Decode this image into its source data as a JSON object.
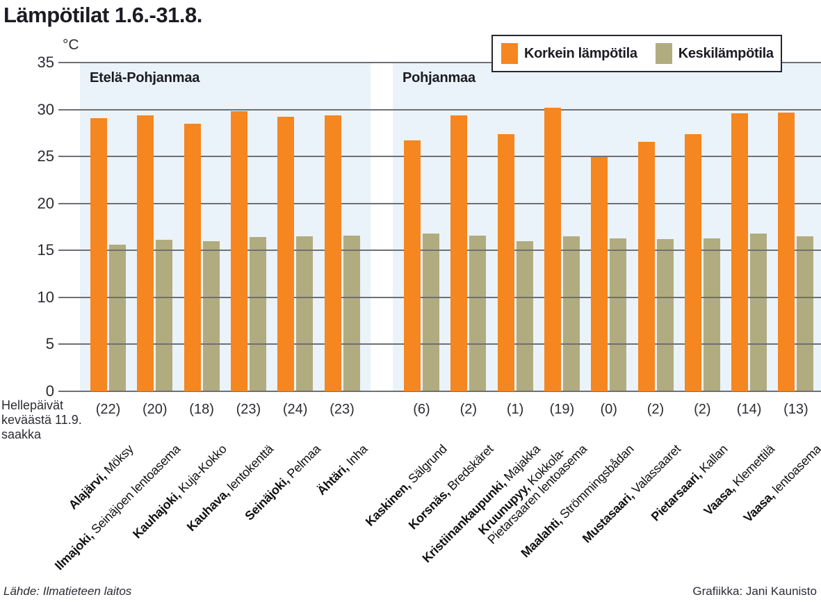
{
  "title": "Lämpötilat 1.6.-31.8.",
  "legend": {
    "max_label": "Korkein lämpötila",
    "mean_label": "Keskilämpötila"
  },
  "hot_days_note": {
    "line1": "Hellepäivät",
    "line2": "keväästä 11.9.",
    "line3": "saakka"
  },
  "footer": {
    "source": "Lähde: Ilmatieteen laitos",
    "credit": "Grafiikka: Jani Kaunisto"
  },
  "colors": {
    "max_bar": "#F6861F",
    "mean_bar": "#B1AB80",
    "panel": "#EAF3FA",
    "gridline": "#6F6F75",
    "text": "#1C1C24"
  },
  "chart_data": {
    "type": "bar",
    "title": "Lämpötilat 1.6.-31.8.",
    "unit": "°C",
    "ylabel": "°C",
    "xlabel": "",
    "ylim": [
      0,
      35
    ],
    "yticks": [
      35,
      30,
      25,
      20,
      15,
      10,
      5,
      0
    ],
    "grid": true,
    "legend_position": "top-right",
    "series_names": [
      "Korkein lämpötila",
      "Keskilämpötila"
    ],
    "hot_days_caption": "Hellepäivät keväästä 11.9. saakka",
    "groups": [
      {
        "name": "Etelä-Pohjanmaa",
        "stations": [
          {
            "city": "Alajärvi",
            "detail": "Möksy",
            "hot_days": 22,
            "max": 29.1,
            "mean": 15.6
          },
          {
            "city": "Ilmajoki",
            "detail": "Seinäjoen lentoasema",
            "hot_days": 20,
            "max": 29.4,
            "mean": 16.1
          },
          {
            "city": "Kauhajoki",
            "detail": "Kuja-Kokko",
            "hot_days": 18,
            "max": 28.5,
            "mean": 16.0
          },
          {
            "city": "Kauhava",
            "detail": "lentokenttä",
            "hot_days": 23,
            "max": 29.8,
            "mean": 16.4
          },
          {
            "city": "Seinäjoki",
            "detail": "Pelmaa",
            "hot_days": 24,
            "max": 29.2,
            "mean": 16.5
          },
          {
            "city": "Ähtäri",
            "detail": "Inha",
            "hot_days": 23,
            "max": 29.4,
            "mean": 16.6
          }
        ]
      },
      {
        "name": "Pohjanmaa",
        "stations": [
          {
            "city": "Kaskinen",
            "detail": "Sälgrund",
            "hot_days": 6,
            "max": 26.7,
            "mean": 16.8
          },
          {
            "city": "Korsnäs",
            "detail": "Bredskäret",
            "hot_days": 2,
            "max": 29.4,
            "mean": 16.6
          },
          {
            "city": "Kristiinankaupunki",
            "detail": "Majakka",
            "hot_days": 1,
            "max": 27.4,
            "mean": 16.0
          },
          {
            "city": "Kruunupyy",
            "detail": "Kokkola-",
            "detail_line2": "Pietarsaaren lentoasema",
            "hot_days": 19,
            "max": 30.2,
            "mean": 16.5
          },
          {
            "city": "Maalahti",
            "detail": "Strömmingsbådan",
            "hot_days": 0,
            "max": 24.9,
            "mean": 16.3
          },
          {
            "city": "Mustasaari",
            "detail": "Valassaaret",
            "hot_days": 2,
            "max": 26.6,
            "mean": 16.2
          },
          {
            "city": "Pietarsaari",
            "detail": "Kallan",
            "hot_days": 2,
            "max": 27.4,
            "mean": 16.3
          },
          {
            "city": "Vaasa",
            "detail": "Klemettilä",
            "hot_days": 14,
            "max": 29.6,
            "mean": 16.8
          },
          {
            "city": "Vaasa",
            "detail": "lentoasema",
            "hot_days": 13,
            "max": 29.7,
            "mean": 16.5
          }
        ]
      }
    ]
  }
}
